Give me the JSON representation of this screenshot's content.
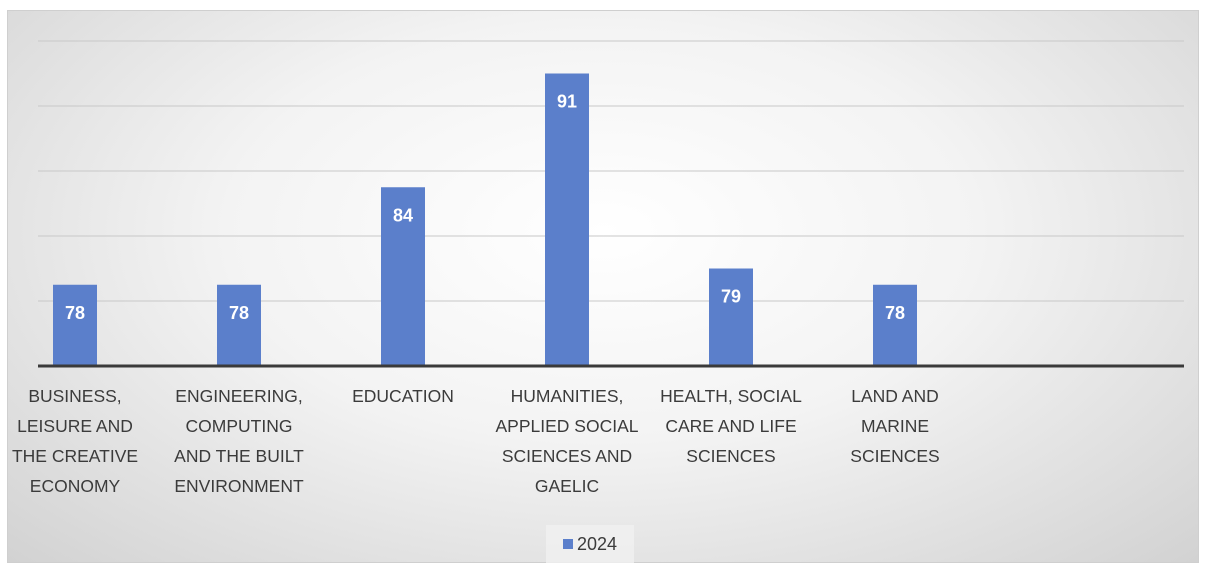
{
  "chart_data": {
    "type": "bar",
    "categories": [
      "BUSINESS, LEISURE AND THE CREATIVE ECONOMY",
      "ENGINEERING, COMPUTING AND THE BUILT ENVIRONMENT",
      "EDUCATION",
      "HUMANITIES, APPLIED SOCIAL SCIENCES AND GAELIC",
      "HEALTH, SOCIAL CARE AND LIFE SCIENCES",
      "LAND AND MARINE SCIENCES"
    ],
    "category_lines": [
      [
        "BUSINESS,",
        "LEISURE AND",
        "THE CREATIVE",
        "ECONOMY"
      ],
      [
        "ENGINEERING,",
        "COMPUTING",
        "AND THE BUILT",
        "ENVIRONMENT"
      ],
      [
        "EDUCATION"
      ],
      [
        "HUMANITIES,",
        "APPLIED SOCIAL",
        "SCIENCES AND",
        "GAELIC"
      ],
      [
        "HEALTH, SOCIAL",
        "CARE AND LIFE",
        "SCIENCES"
      ],
      [
        "LAND AND",
        "MARINE",
        "SCIENCES"
      ]
    ],
    "series": [
      {
        "name": "2024",
        "values": [
          78,
          78,
          84,
          91,
          79,
          78
        ]
      }
    ],
    "title": "",
    "xlabel": "",
    "ylabel": "",
    "ylim": [
      73,
      93
    ],
    "grid": true,
    "legend": "bottom",
    "colors": {
      "bar": "#5b7fcb",
      "label": "#ffffff"
    }
  }
}
